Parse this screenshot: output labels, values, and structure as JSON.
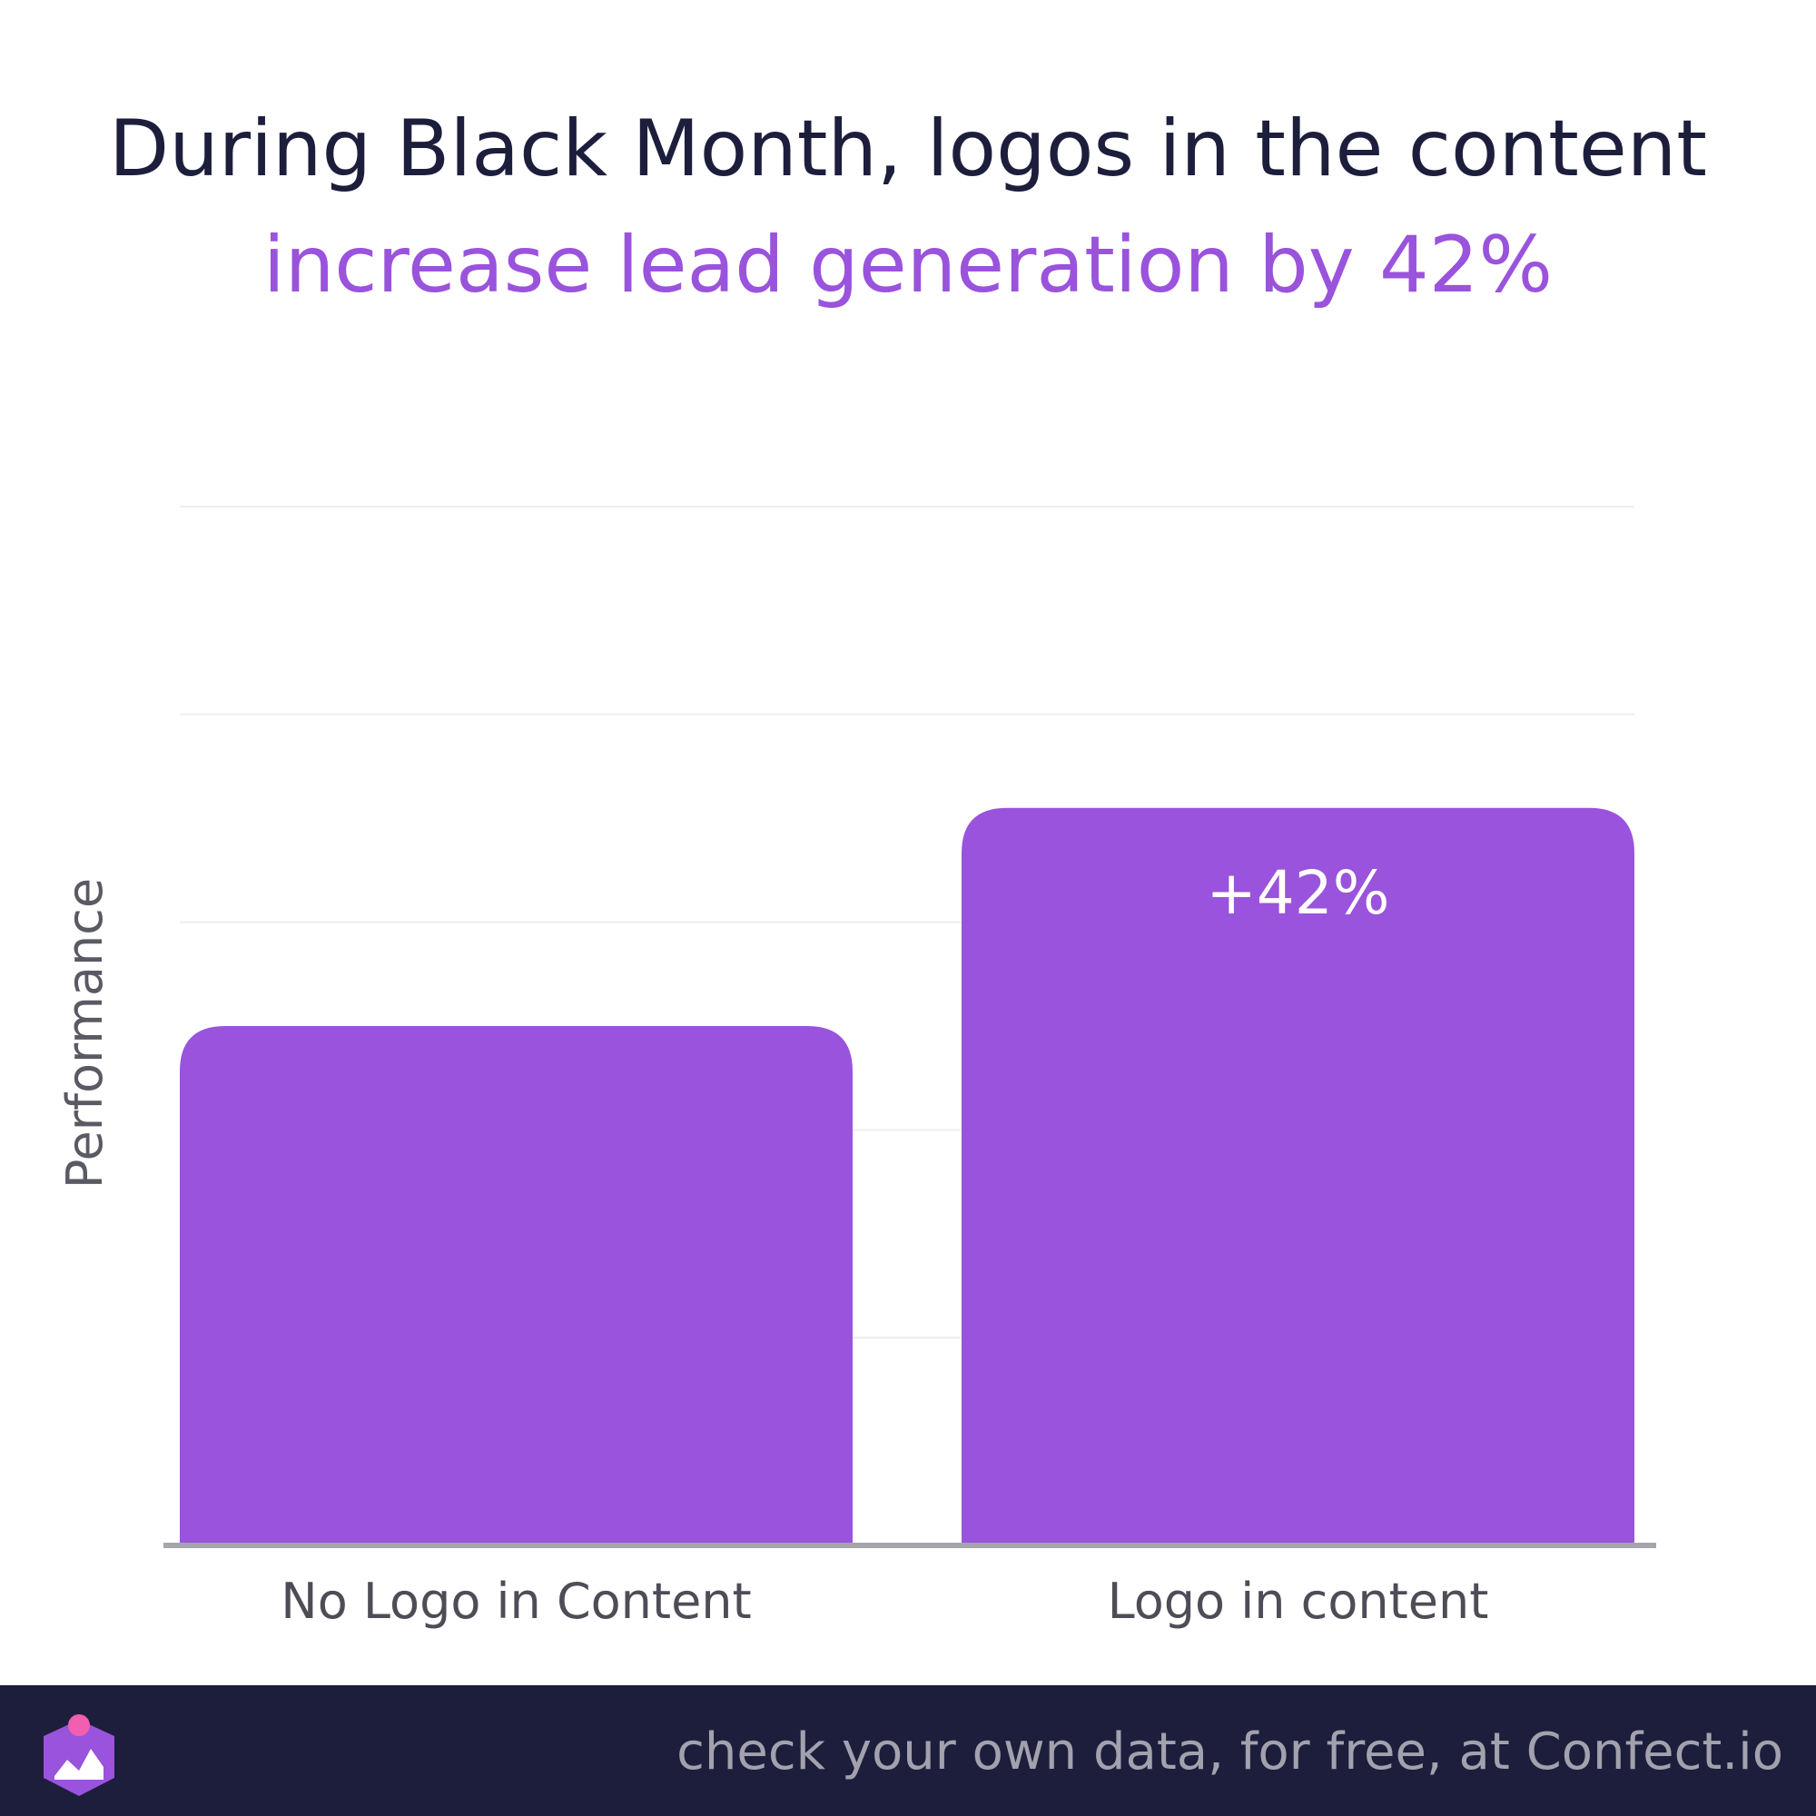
{
  "chart_data": {
    "type": "bar",
    "title": "During Black Month, logos in the content",
    "subtitle": "increase lead generation by 42%",
    "ylabel": "Performance",
    "xlabel": "",
    "categories": [
      "No Logo in Content",
      "Logo in content"
    ],
    "values": [
      100,
      142
    ],
    "data_labels": [
      "",
      "+42%"
    ],
    "ylim": [
      0,
      200
    ],
    "grid": true,
    "bar_color": "#9a53dc",
    "label_color": "#ffffff"
  },
  "footer": {
    "text": "check your own data, for free, at Confect.io",
    "logo_icon": "confect-logo-icon",
    "background": "#1c1e3c"
  }
}
